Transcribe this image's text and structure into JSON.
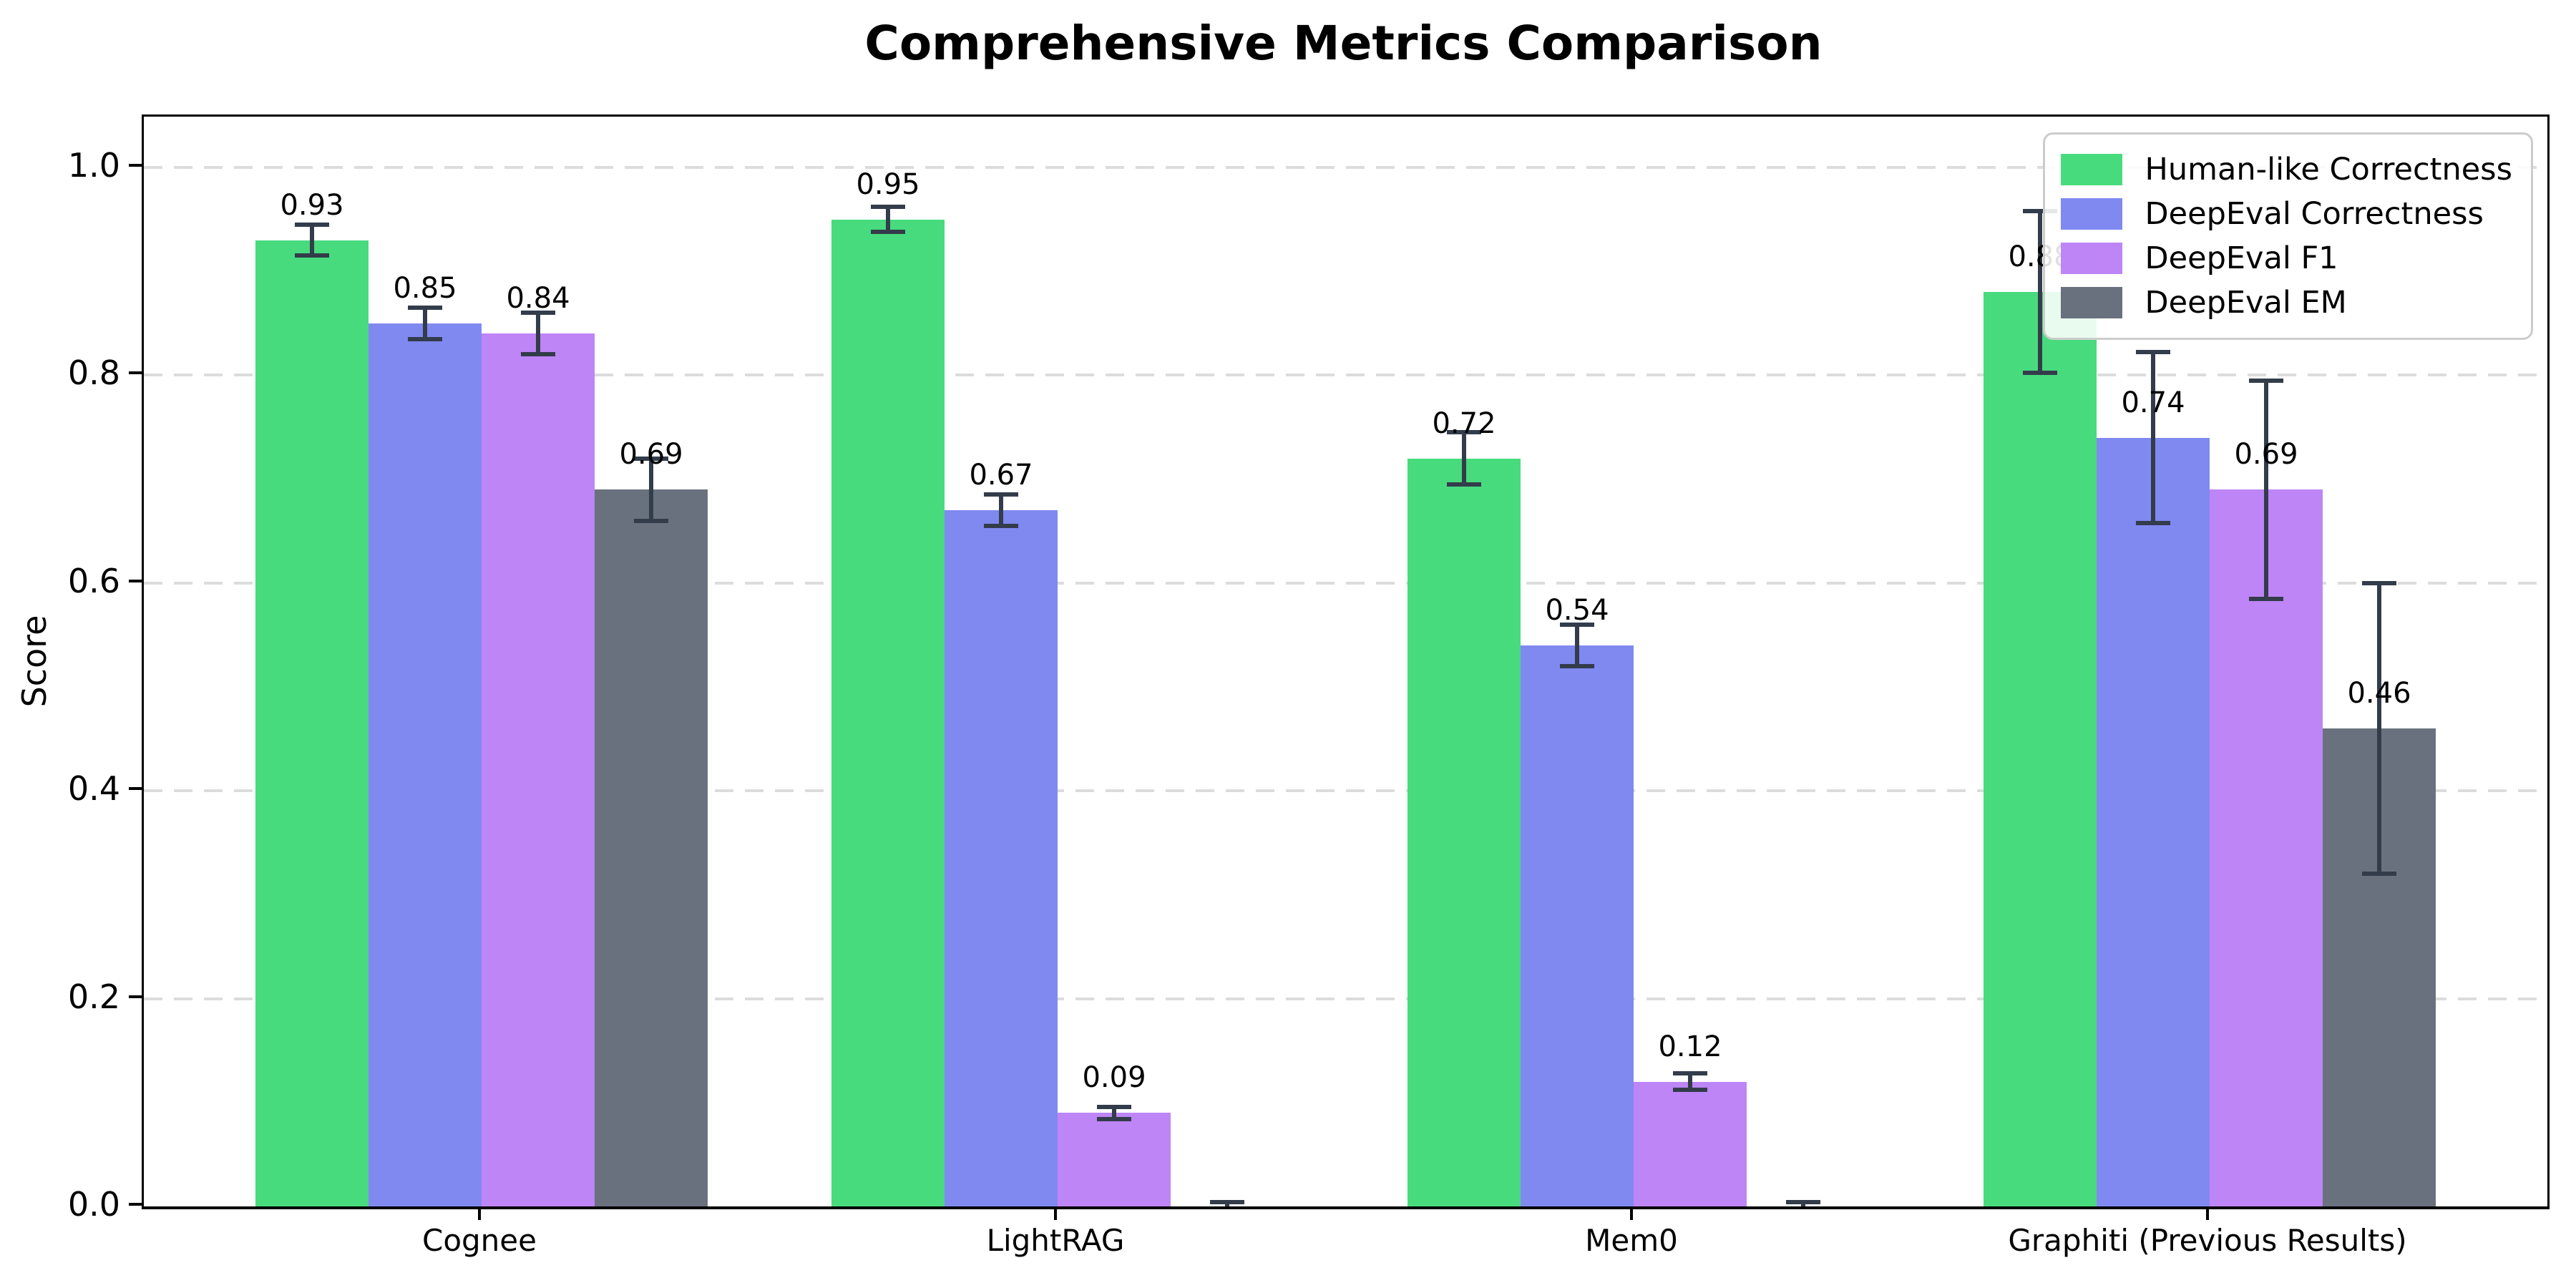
{
  "chart_data": {
    "type": "bar",
    "title": "Comprehensive Metrics Comparison",
    "ylabel": "Score",
    "xlabel": "",
    "categories": [
      "Cognee",
      "LightRAG",
      "Mem0",
      "Graphiti (Previous Results)"
    ],
    "series": [
      {
        "name": "Human-like Correctness",
        "color": "#48db7e",
        "values": [
          0.93,
          0.95,
          0.72,
          0.88
        ],
        "errors": [
          0.015,
          0.012,
          0.025,
          0.078
        ],
        "value_labels": [
          "0.93",
          "0.95",
          "0.72",
          "0.88"
        ]
      },
      {
        "name": "DeepEval Correctness",
        "color": "#8089f0",
        "values": [
          0.85,
          0.67,
          0.54,
          0.74
        ],
        "errors": [
          0.015,
          0.015,
          0.02,
          0.082
        ],
        "value_labels": [
          "0.85",
          "0.67",
          "0.54",
          "0.74"
        ]
      },
      {
        "name": "DeepEval F1",
        "color": "#bd85f6",
        "values": [
          0.84,
          0.09,
          0.12,
          0.69
        ],
        "errors": [
          0.02,
          0.006,
          0.008,
          0.105
        ],
        "value_labels": [
          "0.84",
          "0.09",
          "0.12",
          "0.69"
        ]
      },
      {
        "name": "DeepEval EM",
        "color": "#6a717e",
        "values": [
          0.69,
          0.0,
          0.0,
          0.46
        ],
        "errors": [
          0.03,
          0.004,
          0.004,
          0.14
        ],
        "value_labels": [
          "0.69",
          "",
          "",
          "0.46"
        ]
      }
    ],
    "yticks": [
      "0.0",
      "0.2",
      "0.4",
      "0.6",
      "0.8",
      "1.0"
    ],
    "ytick_values": [
      0.0,
      0.2,
      0.4,
      0.6,
      0.8,
      1.0
    ],
    "ylim": [
      0,
      1.049
    ],
    "grid": "horizontal-dashed",
    "legend_position": "upper right",
    "error_bar_color": "#333c4a",
    "gridline_color": "#dcdcdc"
  }
}
